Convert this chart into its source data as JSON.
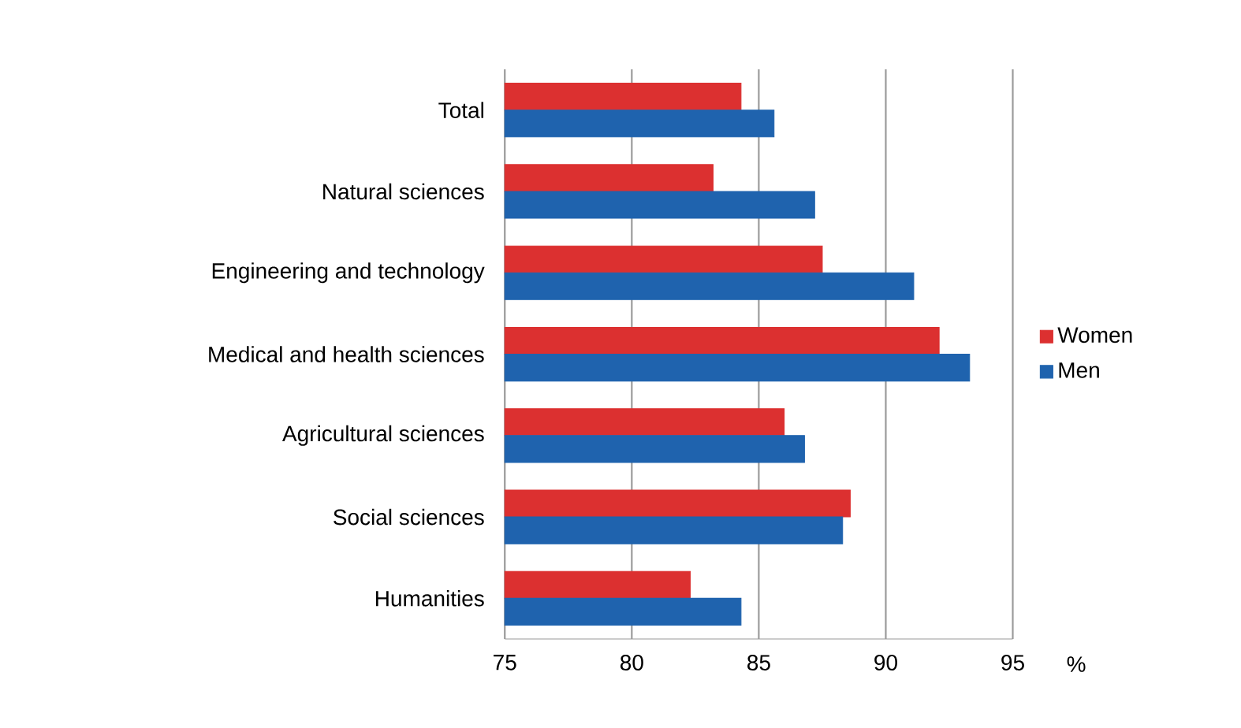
{
  "chart_data": {
    "type": "bar",
    "orientation": "horizontal",
    "xlabel": "%",
    "categories": [
      "Total",
      "Natural sciences",
      "Engineering and technology",
      "Medical and health sciences",
      "Agricultural sciences",
      "Social sciences",
      "Humanities"
    ],
    "series": [
      {
        "name": "Women",
        "color": "#dc3030",
        "values": [
          84.3,
          83.2,
          87.5,
          92.1,
          86.0,
          88.6,
          82.3
        ]
      },
      {
        "name": "Men",
        "color": "#1f63ae",
        "values": [
          85.6,
          87.2,
          91.1,
          93.3,
          86.8,
          88.3,
          84.3
        ]
      }
    ],
    "xlim": [
      75,
      95
    ],
    "xticks": [
      75,
      80,
      85,
      90,
      95
    ],
    "grid": "x",
    "legend": "right"
  }
}
